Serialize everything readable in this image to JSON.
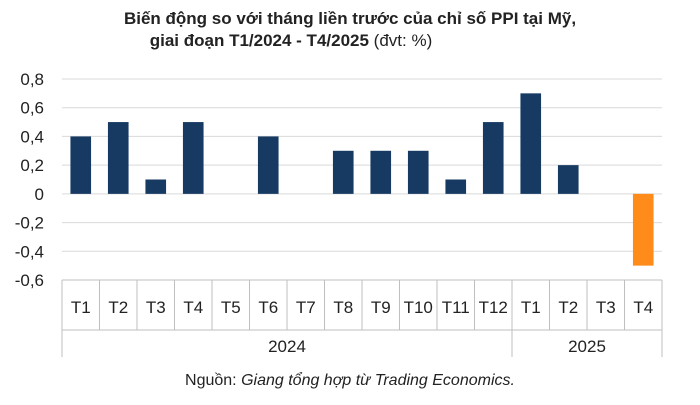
{
  "title": {
    "line1": "Biến động so với tháng liền trước của chỉ số PPI tại Mỹ,",
    "line2_bold": "giai đoạn T1/2024 - T4/2025",
    "line2_unit": " (đvt: %)"
  },
  "source": {
    "prefix": "Nguồn: ",
    "text": "Giang tổng hợp từ Trading Economics."
  },
  "chart_data": {
    "type": "bar",
    "title": "Biến động so với tháng liền trước của chỉ số PPI tại Mỹ, giai đoạn T1/2024 - T4/2025",
    "unit": "%",
    "categories": [
      "T1",
      "T2",
      "T3",
      "T4",
      "T5",
      "T6",
      "T7",
      "T8",
      "T9",
      "T10",
      "T11",
      "T12",
      "T1",
      "T2",
      "T3",
      "T4"
    ],
    "groups": [
      {
        "label": "2024",
        "count": 12
      },
      {
        "label": "2025",
        "count": 4
      }
    ],
    "values": [
      0.4,
      0.5,
      0.1,
      0.5,
      0,
      0.4,
      0,
      0.3,
      0.3,
      0.3,
      0.1,
      0.5,
      0.7,
      0.2,
      0,
      -0.5
    ],
    "ylim": [
      -0.6,
      0.8
    ],
    "yticks": [
      0.8,
      0.6,
      0.4,
      0.2,
      0,
      -0.2,
      -0.4,
      -0.6
    ],
    "ytick_labels": [
      "0,8",
      "0,6",
      "0,4",
      "0,2",
      "0",
      "-0,2",
      "-0,4",
      "-0,6"
    ],
    "grid": true,
    "colors": {
      "positive": "#173a63",
      "negative": "#ff8c1a",
      "grid": "#d9d9d9",
      "axis": "#bfbfbf"
    }
  }
}
